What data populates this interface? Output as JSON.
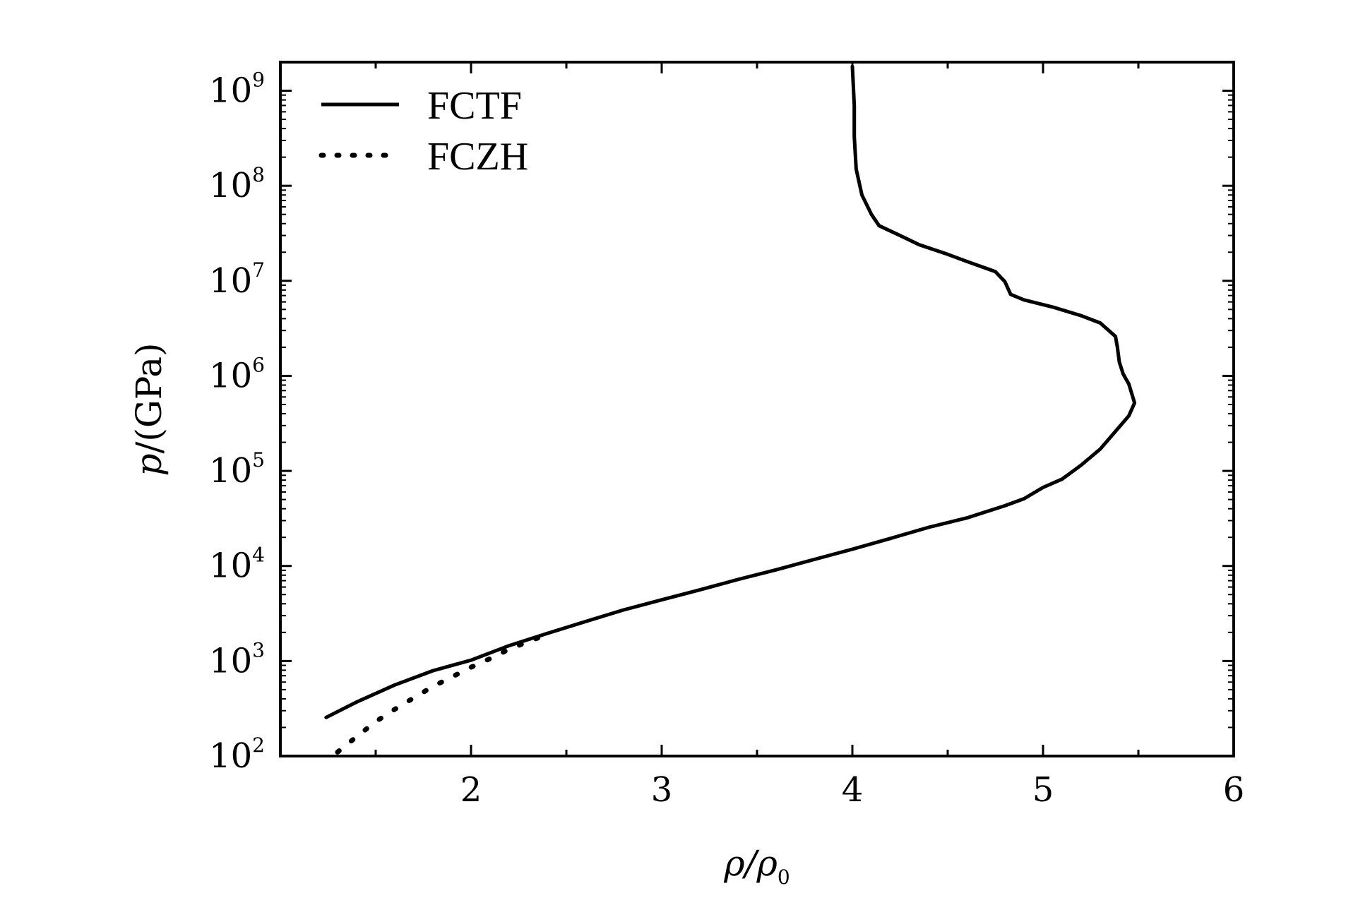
{
  "chart_data": {
    "type": "line",
    "title": "",
    "xlabel": {
      "base": "ρ/ρ",
      "sub": "0"
    },
    "ylabel": {
      "italic": "p",
      "rest": "/(GPa)"
    },
    "x_axis": {
      "range": [
        1,
        6
      ],
      "ticks": [
        2,
        3,
        4,
        5,
        6
      ],
      "tick_labels": [
        "2",
        "3",
        "4",
        "5",
        "6"
      ],
      "minor_ticks": [
        1.5,
        2.5,
        3.5,
        4.5,
        5.5
      ]
    },
    "y_axis": {
      "scale": "log",
      "range": [
        100,
        2000000000
      ],
      "ticks": [
        100,
        1000,
        10000,
        100000,
        1000000,
        10000000,
        100000000,
        1000000000
      ],
      "tick_labels": [
        {
          "base": "10",
          "exp": "2"
        },
        {
          "base": "10",
          "exp": "3"
        },
        {
          "base": "10",
          "exp": "4"
        },
        {
          "base": "10",
          "exp": "5"
        },
        {
          "base": "10",
          "exp": "6"
        },
        {
          "base": "10",
          "exp": "7"
        },
        {
          "base": "10",
          "exp": "8"
        },
        {
          "base": "10",
          "exp": "9"
        }
      ]
    },
    "grid": false,
    "legend_position": "top-left",
    "series": [
      {
        "name": "FCTF",
        "style": "solid",
        "color": "#000000",
        "points": [
          [
            1.24,
            255
          ],
          [
            1.4,
            370
          ],
          [
            1.6,
            560
          ],
          [
            1.8,
            790
          ],
          [
            2.0,
            1020
          ],
          [
            2.2,
            1450
          ],
          [
            2.4,
            1950
          ],
          [
            2.6,
            2600
          ],
          [
            2.8,
            3450
          ],
          [
            3.0,
            4400
          ],
          [
            3.2,
            5600
          ],
          [
            3.4,
            7200
          ],
          [
            3.6,
            9100
          ],
          [
            3.8,
            11700
          ],
          [
            4.0,
            15000
          ],
          [
            4.2,
            19500
          ],
          [
            4.4,
            25500
          ],
          [
            4.6,
            32000
          ],
          [
            4.8,
            43000
          ],
          [
            4.9,
            51000
          ],
          [
            5.0,
            67000
          ],
          [
            5.1,
            82000
          ],
          [
            5.2,
            115000
          ],
          [
            5.3,
            170000
          ],
          [
            5.4,
            290000
          ],
          [
            5.45,
            380000
          ],
          [
            5.48,
            520000
          ],
          [
            5.45,
            820000
          ],
          [
            5.42,
            1050000
          ],
          [
            5.4,
            1400000
          ],
          [
            5.39,
            2000000
          ],
          [
            5.38,
            2600000
          ],
          [
            5.3,
            3600000
          ],
          [
            5.2,
            4300000
          ],
          [
            5.05,
            5300000
          ],
          [
            4.9,
            6300000
          ],
          [
            4.83,
            7200000
          ],
          [
            4.8,
            9800000
          ],
          [
            4.75,
            12500000
          ],
          [
            4.6,
            16000000
          ],
          [
            4.5,
            19000000
          ],
          [
            4.35,
            24000000
          ],
          [
            4.25,
            30000000
          ],
          [
            4.14,
            38000000
          ],
          [
            4.1,
            50000000
          ],
          [
            4.05,
            80000000
          ],
          [
            4.02,
            150000000
          ],
          [
            4.01,
            330000000
          ],
          [
            4.01,
            700000000
          ],
          [
            4.0,
            1800000000
          ]
        ]
      },
      {
        "name": "FCZH",
        "style": "dotted",
        "color": "#000000",
        "points": [
          [
            1.3,
            110
          ],
          [
            1.4,
            160
          ],
          [
            1.5,
            230
          ],
          [
            1.6,
            310
          ],
          [
            1.7,
            410
          ],
          [
            1.8,
            540
          ],
          [
            1.9,
            680
          ],
          [
            2.0,
            860
          ],
          [
            2.1,
            1060
          ],
          [
            2.2,
            1330
          ],
          [
            2.3,
            1600
          ],
          [
            2.4,
            1900
          ]
        ]
      }
    ]
  }
}
